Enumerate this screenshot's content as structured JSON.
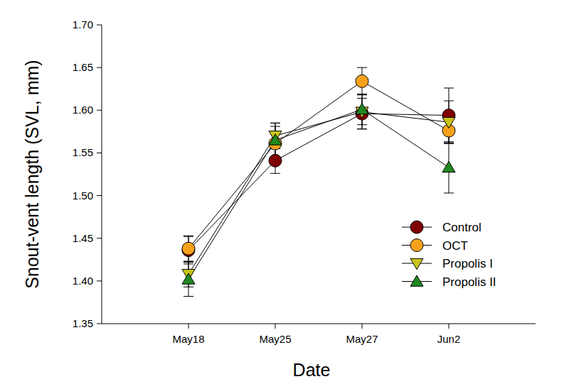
{
  "chart_data": {
    "type": "line",
    "x_label": "Date",
    "y_label": "Snout-vent length (SVL, mm)",
    "categories": [
      "May18",
      "May25",
      "May27",
      "Jun2"
    ],
    "ylim": [
      1.35,
      1.7
    ],
    "yticks": [
      1.35,
      {
        "value": 1.4,
        "label": "1.40"
      },
      1.45,
      {
        "value": 1.5,
        "label": "1.50"
      },
      1.55,
      {
        "value": 1.6,
        "label": "1.60"
      },
      1.65,
      {
        "value": 1.7,
        "label": "1.70"
      }
    ],
    "grid": false,
    "legend": "lower right",
    "series": [
      {
        "name": "Control",
        "color": "#7f0000",
        "marker": "circle",
        "line_style": "solid",
        "values": [
          1.436,
          1.541,
          1.596,
          1.594
        ],
        "errors": [
          0.016,
          0.015,
          0.018,
          0.032
        ]
      },
      {
        "name": "OCT",
        "color": "#f7a11a",
        "marker": "circle",
        "line_style": "solid",
        "values": [
          1.438,
          1.561,
          1.634,
          1.576
        ],
        "errors": [
          0.015,
          0.02,
          0.016,
          0.015
        ]
      },
      {
        "name": "Propolis I",
        "color": "#c9c41c",
        "marker": "triangle-down",
        "line_style": "solid",
        "values": [
          1.408,
          1.57,
          1.598,
          1.586
        ],
        "errors": [
          0.015,
          0.015,
          0.02,
          0.025
        ]
      },
      {
        "name": "Propolis II",
        "color": "#1f8a1f",
        "marker": "triangle-up",
        "line_style": "solid",
        "values": [
          1.402,
          1.565,
          1.601,
          1.533
        ],
        "errors": [
          0.02,
          0.02,
          0.018,
          0.03
        ]
      }
    ]
  }
}
